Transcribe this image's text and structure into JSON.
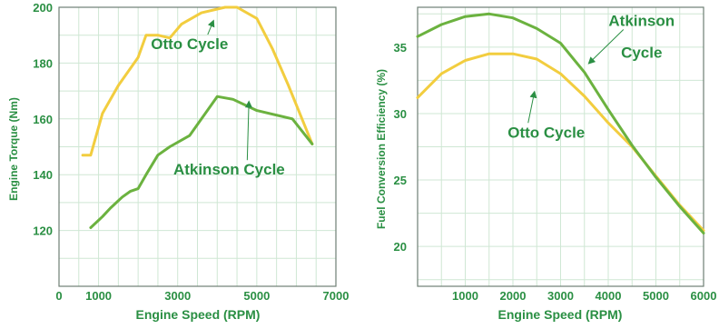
{
  "colors": {
    "otto": "#f2cd3f",
    "atkinson": "#6bb23f",
    "text": "#2a8f43",
    "grid": "#cfe7d4",
    "axis": "#6f7f74"
  },
  "chart_data": [
    {
      "type": "line",
      "xlabel": "Engine Speed (RPM)",
      "ylabel": "Engine Torque (Nm)",
      "xlim": [
        0,
        7000
      ],
      "ylim": [
        100,
        200
      ],
      "x_ticks": [
        0,
        1000,
        3000,
        5000,
        7000
      ],
      "x_tick_labels": [
        "0",
        "1000",
        "3000",
        "5000",
        "7000"
      ],
      "y_ticks": [
        120,
        140,
        160,
        180,
        200
      ],
      "y_tick_labels": [
        "120",
        "140",
        "160",
        "180",
        "200"
      ],
      "grid": true,
      "series": [
        {
          "name": "Otto Cycle",
          "color": "#f2cd3f",
          "x": [
            600,
            800,
            1100,
            1500,
            2000,
            2200,
            2500,
            2800,
            3100,
            3600,
            4200,
            4500,
            5000,
            5400,
            5800,
            6400
          ],
          "y": [
            147,
            147,
            162,
            172,
            182,
            190,
            190,
            189,
            194,
            198,
            200,
            200,
            196,
            185,
            172,
            151
          ]
        },
        {
          "name": "Atkinson Cycle",
          "color": "#6bb23f",
          "x": [
            800,
            1100,
            1300,
            1600,
            1800,
            2000,
            2200,
            2500,
            2800,
            3300,
            3600,
            4000,
            4400,
            5000,
            5900,
            6400
          ],
          "y": [
            121,
            125,
            128,
            132,
            134,
            135,
            140,
            147,
            150,
            154,
            160,
            168,
            167,
            163,
            160,
            151
          ]
        }
      ],
      "annotations": [
        {
          "text": "Otto Cycle",
          "x": 3300,
          "y": 185,
          "arrow_to": [
            3900,
            195
          ]
        },
        {
          "text": "Atkinson Cycle",
          "x": 4300,
          "y": 140,
          "arrow_to": [
            4800,
            166
          ]
        }
      ]
    },
    {
      "type": "line",
      "xlabel": "Engine Speed (RPM)",
      "ylabel": "Fuel Conversion Efficiency (%)",
      "xlim": [
        0,
        6000
      ],
      "ylim": [
        17,
        38
      ],
      "x_ticks": [
        1000,
        2000,
        3000,
        4000,
        5000,
        6000
      ],
      "x_tick_labels": [
        "1000",
        "2000",
        "3000",
        "4000",
        "5000",
        "6000"
      ],
      "y_ticks": [
        20,
        25,
        30,
        35
      ],
      "y_tick_labels": [
        "20",
        "25",
        "30",
        "35"
      ],
      "grid": true,
      "series": [
        {
          "name": "Otto Cycle",
          "color": "#f2cd3f",
          "x": [
            0,
            500,
            1000,
            1500,
            2000,
            2500,
            3000,
            3500,
            4000,
            4500,
            5000,
            5500,
            6000
          ],
          "y": [
            31.2,
            33.0,
            34.0,
            34.5,
            34.5,
            34.1,
            33.0,
            31.3,
            29.3,
            27.5,
            25.3,
            23.1,
            21.2
          ]
        },
        {
          "name": "Atkinson Cycle",
          "color": "#6bb23f",
          "x": [
            0,
            500,
            1000,
            1500,
            2000,
            2500,
            3000,
            3500,
            4000,
            4500,
            5000,
            5500,
            6000
          ],
          "y": [
            35.8,
            36.7,
            37.3,
            37.5,
            37.2,
            36.4,
            35.3,
            33.1,
            30.3,
            27.6,
            25.2,
            23.0,
            21.0
          ]
        }
      ],
      "annotations": [
        {
          "text": "Atkinson",
          "x": 4700,
          "y": 36.6,
          "arrow_to": [
            3600,
            33.8
          ]
        },
        {
          "text": "Cycle",
          "x": 4700,
          "y": 34.2
        },
        {
          "text": "Otto Cycle",
          "x": 2700,
          "y": 28.2,
          "arrow_to": [
            2450,
            31.6
          ]
        }
      ]
    }
  ]
}
